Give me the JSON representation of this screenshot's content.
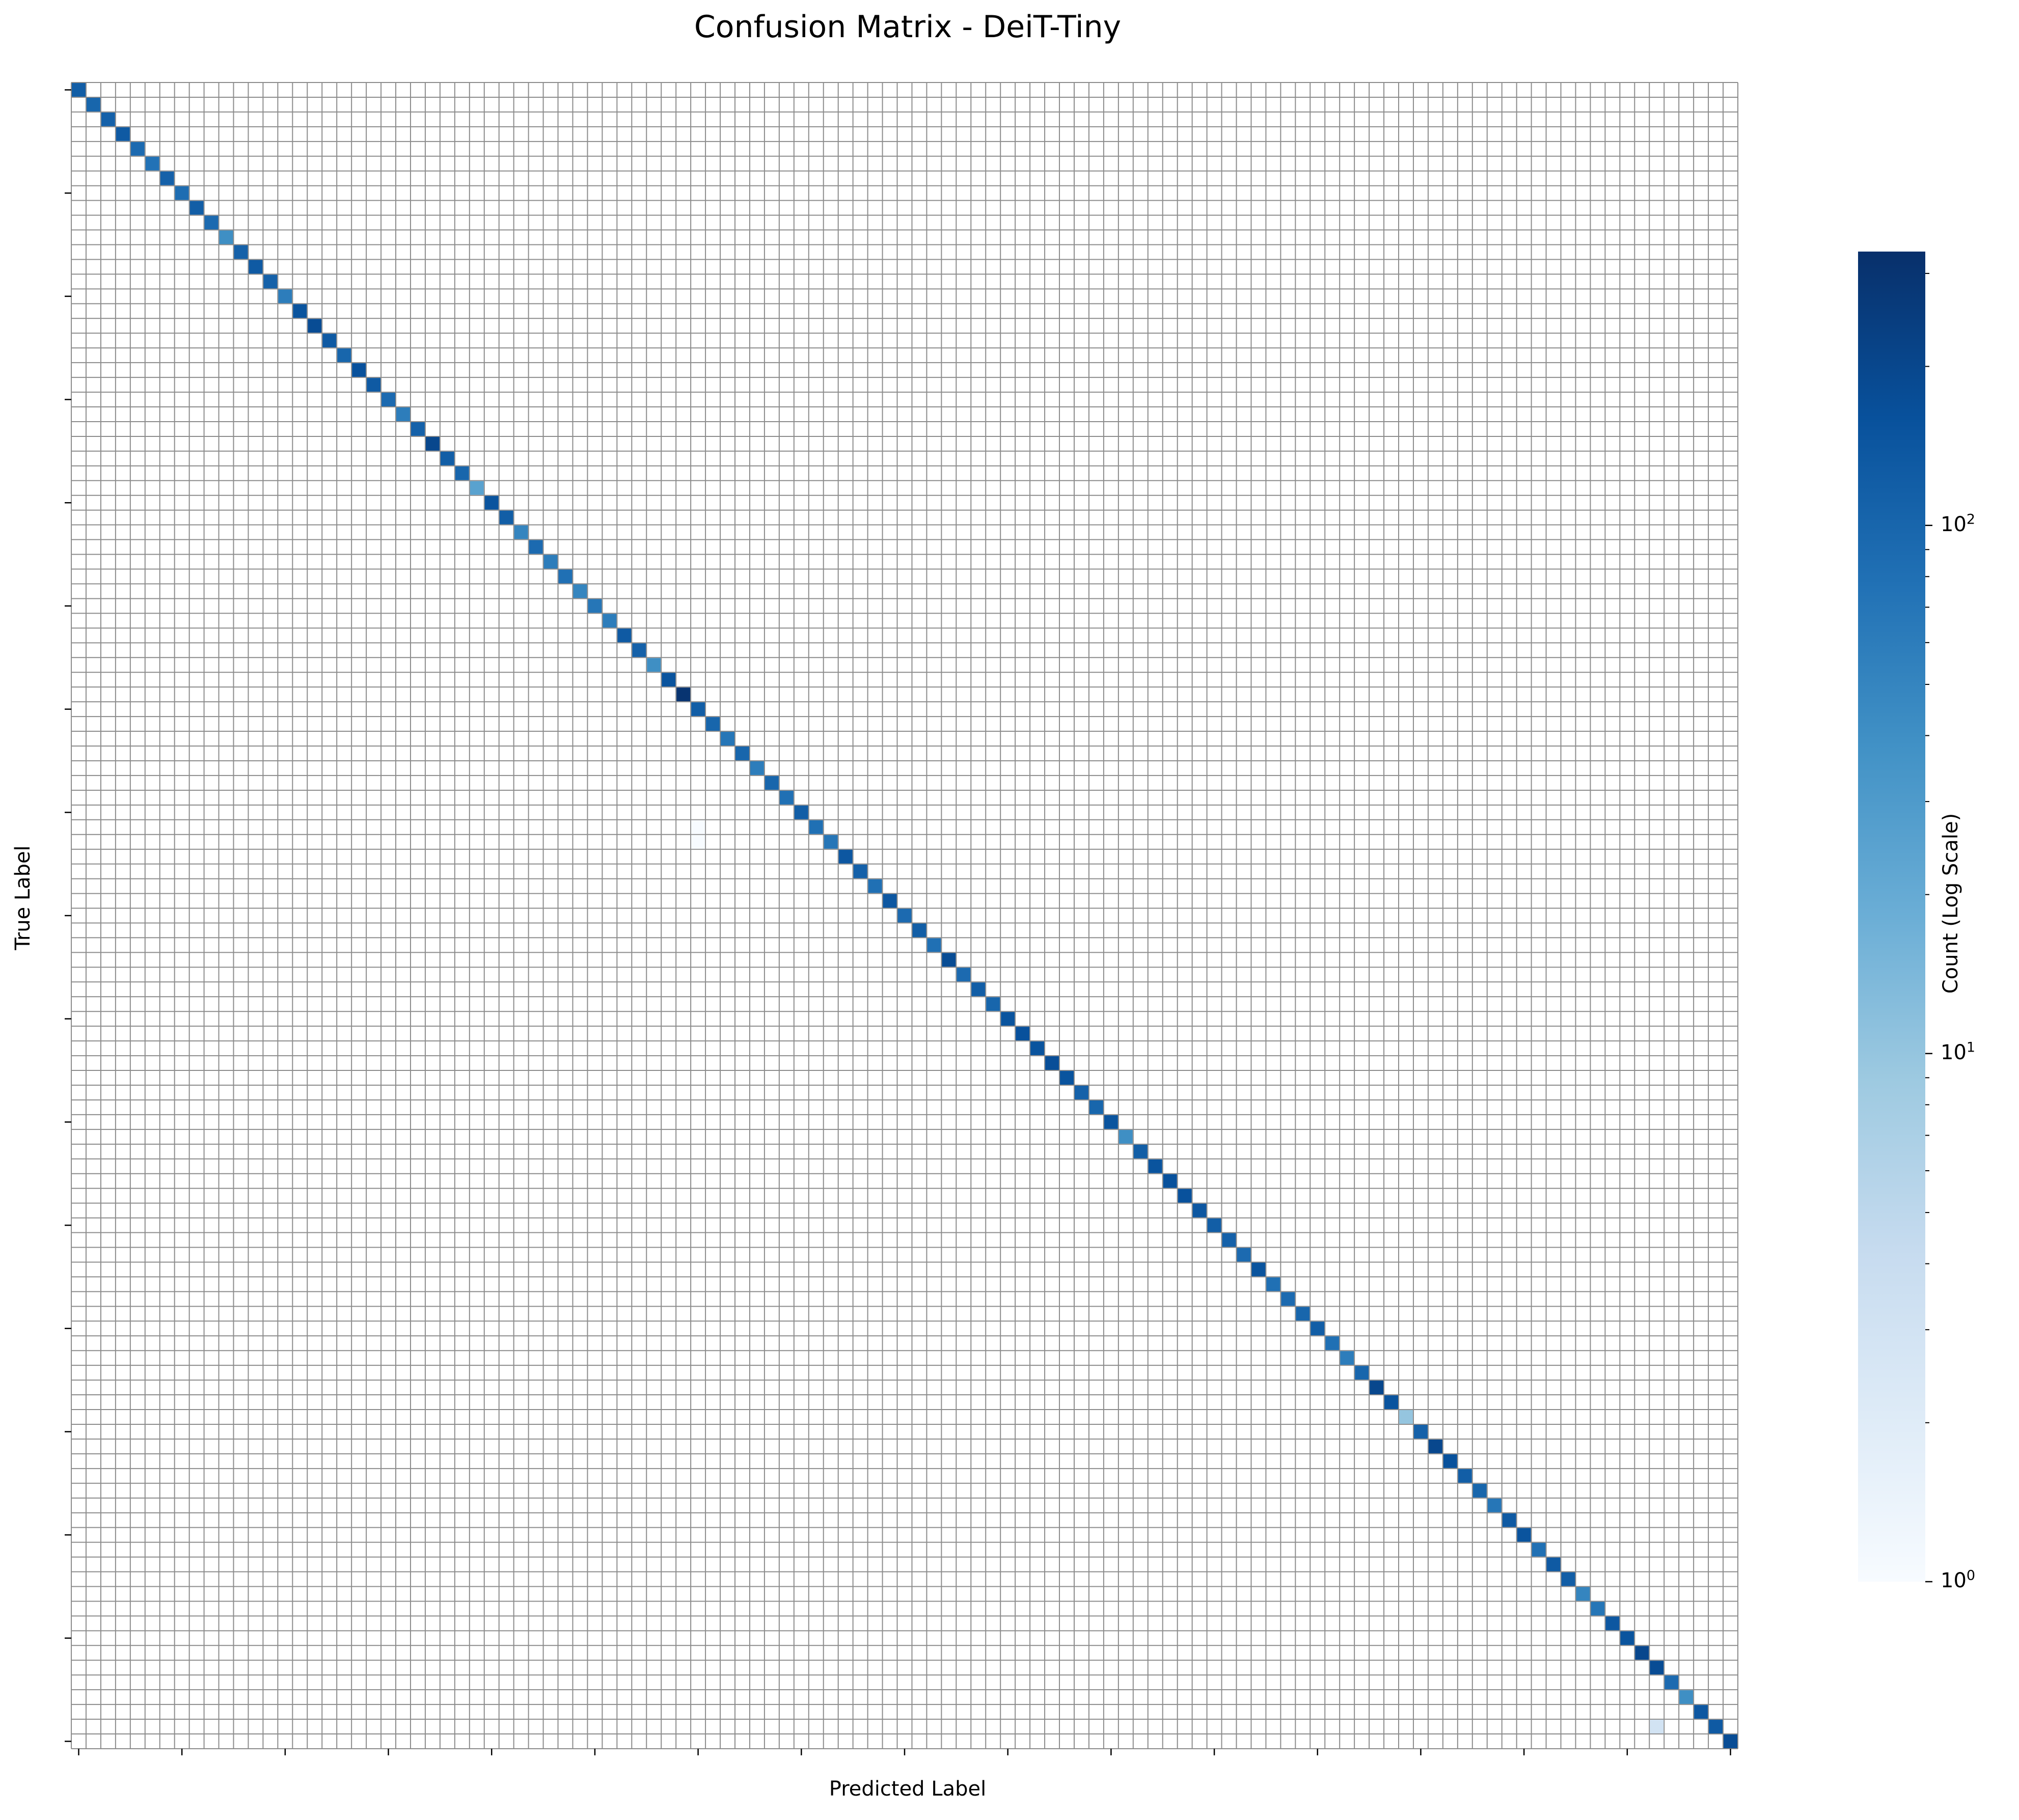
{
  "chart_data": {
    "type": "heatmap",
    "title": "Confusion Matrix - DeiT-Tiny",
    "xlabel": "Predicted Label",
    "ylabel": "True Label",
    "n_classes": 113,
    "x_tick_labels": [],
    "y_tick_labels": [],
    "colormap": "Blues",
    "color_scale": "log",
    "colorbar": {
      "label": "Count (Log Scale)",
      "range": [
        1,
        330
      ],
      "ticks": [
        {
          "value": 1,
          "base": "10",
          "exp": "0"
        },
        {
          "value": 10,
          "base": "10",
          "exp": "1"
        },
        {
          "value": 100,
          "base": "10",
          "exp": "2"
        }
      ]
    },
    "diagonal_counts": [
      120,
      100,
      110,
      130,
      90,
      75,
      110,
      85,
      120,
      90,
      40,
      110,
      130,
      110,
      60,
      150,
      180,
      130,
      100,
      160,
      130,
      90,
      60,
      110,
      200,
      120,
      100,
      25,
      150,
      120,
      50,
      90,
      60,
      80,
      50,
      70,
      60,
      130,
      110,
      40,
      150,
      300,
      120,
      100,
      70,
      100,
      60,
      100,
      80,
      120,
      80,
      70,
      140,
      110,
      80,
      140,
      90,
      120,
      80,
      180,
      90,
      120,
      100,
      150,
      160,
      150,
      170,
      150,
      110,
      100,
      150,
      40,
      120,
      150,
      160,
      160,
      140,
      120,
      110,
      90,
      150,
      80,
      90,
      100,
      120,
      80,
      60,
      100,
      200,
      150,
      10,
      110,
      200,
      160,
      120,
      100,
      70,
      130,
      150,
      80,
      130,
      120,
      50,
      70,
      140,
      150,
      200,
      180,
      90,
      40,
      140,
      130,
      180
    ],
    "off_diagonal": [
      {
        "row": 111,
        "col": 107,
        "value": 3
      },
      {
        "row": 50,
        "col": 42,
        "value": 1
      },
      {
        "row": 51,
        "col": 42,
        "value": 1
      }
    ]
  }
}
